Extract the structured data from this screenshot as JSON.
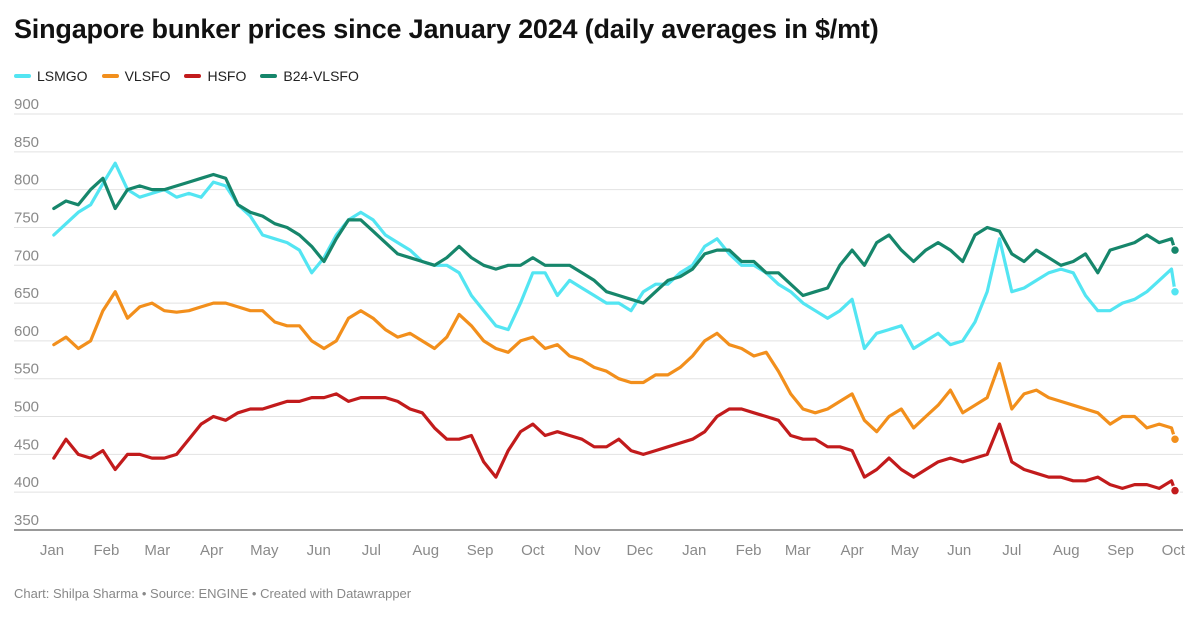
{
  "title": "Singapore bunker prices since January 2024 (daily averages in $/mt)",
  "footer": "Chart: Shilpa Sharma • Source: ENGINE • Created with Datawrapper",
  "chart_data": {
    "type": "line",
    "title": "Singapore bunker prices since January 2024 (daily averages in $/mt)",
    "xlabel": "",
    "ylabel": "",
    "ylim": [
      350,
      900
    ],
    "y_ticks": [
      350,
      400,
      450,
      500,
      550,
      600,
      650,
      700,
      750,
      800,
      850,
      900
    ],
    "x_ticks": [
      "Jan",
      "Feb",
      "Mar",
      "Apr",
      "May",
      "Jun",
      "Jul",
      "Aug",
      "Sep",
      "Oct",
      "Nov",
      "Dec",
      "Jan",
      "Feb",
      "Mar",
      "Apr",
      "May",
      "Jun",
      "Jul",
      "Aug",
      "Sep",
      "Oct"
    ],
    "grid": true,
    "legend_position": "top-left",
    "x": [
      "2024-01-02",
      "2024-01-09",
      "2024-01-16",
      "2024-01-23",
      "2024-01-30",
      "2024-02-06",
      "2024-02-13",
      "2024-02-20",
      "2024-02-27",
      "2024-03-05",
      "2024-03-12",
      "2024-03-19",
      "2024-03-26",
      "2024-04-02",
      "2024-04-09",
      "2024-04-16",
      "2024-04-23",
      "2024-04-30",
      "2024-05-07",
      "2024-05-14",
      "2024-05-21",
      "2024-05-28",
      "2024-06-04",
      "2024-06-11",
      "2024-06-18",
      "2024-06-25",
      "2024-07-02",
      "2024-07-09",
      "2024-07-16",
      "2024-07-23",
      "2024-07-30",
      "2024-08-06",
      "2024-08-13",
      "2024-08-20",
      "2024-08-27",
      "2024-09-03",
      "2024-09-10",
      "2024-09-17",
      "2024-09-24",
      "2024-10-01",
      "2024-10-08",
      "2024-10-15",
      "2024-10-22",
      "2024-10-29",
      "2024-11-05",
      "2024-11-12",
      "2024-11-19",
      "2024-11-26",
      "2024-12-03",
      "2024-12-10",
      "2024-12-17",
      "2024-12-24",
      "2024-12-31",
      "2025-01-07",
      "2025-01-14",
      "2025-01-21",
      "2025-01-28",
      "2025-02-04",
      "2025-02-11",
      "2025-02-18",
      "2025-02-25",
      "2025-03-04",
      "2025-03-11",
      "2025-03-18",
      "2025-03-25",
      "2025-04-01",
      "2025-04-08",
      "2025-04-15",
      "2025-04-22",
      "2025-04-29",
      "2025-05-06",
      "2025-05-13",
      "2025-05-20",
      "2025-05-27",
      "2025-06-03",
      "2025-06-10",
      "2025-06-17",
      "2025-06-24",
      "2025-07-01",
      "2025-07-08",
      "2025-07-15",
      "2025-07-22",
      "2025-07-29",
      "2025-08-05",
      "2025-08-12",
      "2025-08-19",
      "2025-08-26",
      "2025-09-02",
      "2025-09-09",
      "2025-09-16",
      "2025-09-23",
      "2025-09-30",
      "2025-10-02"
    ],
    "series": [
      {
        "name": "LSMGO",
        "color": "#53e5f2",
        "values": [
          740,
          755,
          770,
          780,
          808,
          835,
          800,
          790,
          795,
          800,
          790,
          795,
          790,
          810,
          805,
          780,
          765,
          740,
          735,
          730,
          720,
          690,
          710,
          740,
          760,
          770,
          760,
          740,
          730,
          720,
          705,
          700,
          700,
          690,
          660,
          640,
          620,
          615,
          650,
          690,
          690,
          660,
          680,
          670,
          660,
          650,
          650,
          640,
          665,
          675,
          675,
          690,
          700,
          725,
          735,
          715,
          700,
          700,
          690,
          675,
          665,
          650,
          640,
          630,
          640,
          655,
          590,
          610,
          615,
          620,
          590,
          600,
          610,
          595,
          600,
          625,
          665,
          735,
          665,
          670,
          680,
          690,
          695,
          690,
          660,
          640,
          640,
          650,
          655,
          665,
          680,
          695,
          665
        ]
      },
      {
        "name": "VLSFO",
        "color": "#f28f1c",
        "values": [
          595,
          605,
          590,
          600,
          640,
          665,
          630,
          645,
          650,
          640,
          638,
          640,
          645,
          650,
          650,
          645,
          640,
          640,
          625,
          620,
          620,
          600,
          590,
          600,
          630,
          640,
          630,
          615,
          605,
          610,
          600,
          590,
          605,
          635,
          620,
          600,
          590,
          585,
          600,
          605,
          590,
          595,
          580,
          575,
          565,
          560,
          550,
          545,
          545,
          555,
          555,
          565,
          580,
          600,
          610,
          595,
          590,
          580,
          585,
          560,
          530,
          510,
          505,
          510,
          520,
          530,
          495,
          480,
          500,
          510,
          485,
          500,
          515,
          535,
          505,
          515,
          525,
          570,
          510,
          530,
          535,
          525,
          520,
          515,
          510,
          505,
          490,
          500,
          500,
          485,
          490,
          485,
          470
        ]
      },
      {
        "name": "HSFO",
        "color": "#c21b1c",
        "values": [
          445,
          470,
          450,
          445,
          455,
          430,
          450,
          450,
          445,
          445,
          450,
          470,
          490,
          500,
          495,
          505,
          510,
          510,
          515,
          520,
          520,
          525,
          525,
          530,
          520,
          525,
          525,
          525,
          520,
          510,
          505,
          485,
          470,
          470,
          475,
          440,
          420,
          455,
          480,
          490,
          475,
          480,
          475,
          470,
          460,
          460,
          470,
          455,
          450,
          455,
          460,
          465,
          470,
          480,
          500,
          510,
          510,
          505,
          500,
          495,
          475,
          470,
          470,
          460,
          460,
          455,
          420,
          430,
          445,
          430,
          420,
          430,
          440,
          445,
          440,
          445,
          450,
          490,
          440,
          430,
          425,
          420,
          420,
          415,
          415,
          420,
          410,
          405,
          410,
          410,
          405,
          415,
          402
        ]
      },
      {
        "name": "B24-VLSFO",
        "color": "#16866b",
        "values": [
          775,
          785,
          780,
          800,
          815,
          775,
          800,
          805,
          800,
          800,
          805,
          810,
          815,
          820,
          815,
          780,
          770,
          765,
          755,
          750,
          740,
          725,
          705,
          735,
          760,
          760,
          745,
          730,
          715,
          710,
          705,
          700,
          710,
          725,
          710,
          700,
          695,
          700,
          700,
          710,
          700,
          700,
          700,
          690,
          680,
          665,
          660,
          655,
          650,
          665,
          680,
          685,
          695,
          715,
          720,
          720,
          705,
          705,
          690,
          690,
          675,
          660,
          665,
          670,
          700,
          720,
          700,
          730,
          740,
          720,
          705,
          720,
          730,
          720,
          705,
          740,
          750,
          745,
          715,
          705,
          720,
          710,
          700,
          705,
          715,
          690,
          720,
          725,
          730,
          740,
          730,
          735,
          720
        ]
      }
    ]
  }
}
